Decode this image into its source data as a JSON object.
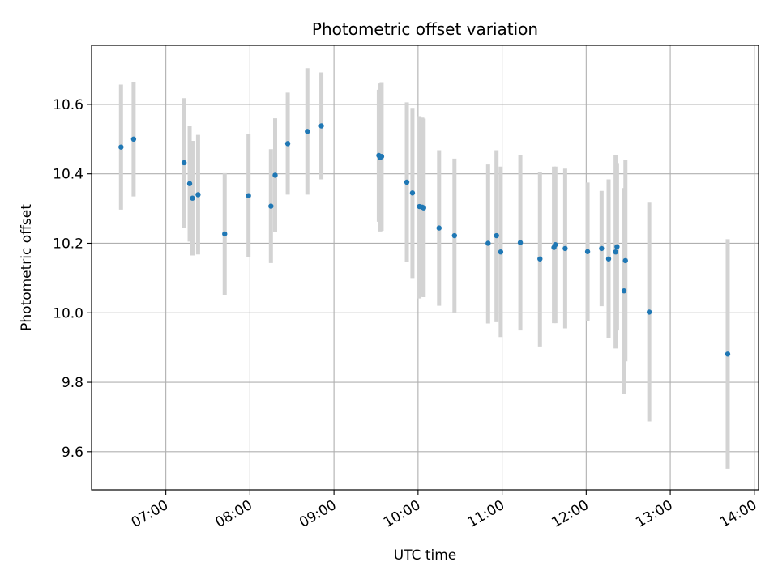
{
  "chart_data": {
    "type": "scatter",
    "title": "Photometric offset variation",
    "xlabel": "UTC time",
    "ylabel": "Photometric offset",
    "x_tick_labels": [
      "07:00",
      "08:00",
      "09:00",
      "10:00",
      "11:00",
      "12:00",
      "13:00",
      "14:00"
    ],
    "y_tick_labels": [
      "9.6",
      "9.8",
      "10.0",
      "10.2",
      "10.4",
      "10.6"
    ],
    "xlim": [
      "06:07",
      "14:03"
    ],
    "ylim": [
      9.49,
      10.77
    ],
    "grid": true,
    "colors": {
      "point": "#1f77b4",
      "errorbar": "#d3d3d3",
      "grid": "#b0b0b0"
    },
    "points": [
      {
        "x": "06:28",
        "y": 10.477,
        "lo": 10.297,
        "hi": 10.657
      },
      {
        "x": "06:37",
        "y": 10.5,
        "lo": 10.335,
        "hi": 10.665
      },
      {
        "x": "07:13",
        "y": 10.432,
        "lo": 10.245,
        "hi": 10.618
      },
      {
        "x": "07:17",
        "y": 10.372,
        "lo": 10.205,
        "hi": 10.539
      },
      {
        "x": "07:19",
        "y": 10.33,
        "lo": 10.165,
        "hi": 10.495
      },
      {
        "x": "07:23",
        "y": 10.34,
        "lo": 10.168,
        "hi": 10.512
      },
      {
        "x": "07:42",
        "y": 10.227,
        "lo": 10.052,
        "hi": 10.402
      },
      {
        "x": "07:59",
        "y": 10.337,
        "lo": 10.159,
        "hi": 10.515
      },
      {
        "x": "08:15",
        "y": 10.307,
        "lo": 10.143,
        "hi": 10.471
      },
      {
        "x": "08:18",
        "y": 10.396,
        "lo": 10.232,
        "hi": 10.56
      },
      {
        "x": "08:27",
        "y": 10.487,
        "lo": 10.34,
        "hi": 10.634
      },
      {
        "x": "08:41",
        "y": 10.522,
        "lo": 10.34,
        "hi": 10.704
      },
      {
        "x": "08:51",
        "y": 10.538,
        "lo": 10.384,
        "hi": 10.692
      },
      {
        "x": "09:32",
        "y": 10.453,
        "lo": 10.262,
        "hi": 10.642
      },
      {
        "x": "09:33",
        "y": 10.447,
        "lo": 10.234,
        "hi": 10.66
      },
      {
        "x": "09:34",
        "y": 10.45,
        "lo": 10.236,
        "hi": 10.664
      },
      {
        "x": "09:52",
        "y": 10.376,
        "lo": 10.146,
        "hi": 10.606
      },
      {
        "x": "09:56",
        "y": 10.345,
        "lo": 10.1,
        "hi": 10.59
      },
      {
        "x": "10:01",
        "y": 10.306,
        "lo": 10.041,
        "hi": 10.566
      },
      {
        "x": "10:03",
        "y": 10.304,
        "lo": 10.046,
        "hi": 10.562
      },
      {
        "x": "10:04",
        "y": 10.302,
        "lo": 10.045,
        "hi": 10.559
      },
      {
        "x": "10:15",
        "y": 10.244,
        "lo": 10.02,
        "hi": 10.468
      },
      {
        "x": "10:26",
        "y": 10.222,
        "lo": 10.0,
        "hi": 10.444
      },
      {
        "x": "10:50",
        "y": 10.2,
        "lo": 9.969,
        "hi": 10.427
      },
      {
        "x": "10:56",
        "y": 10.222,
        "lo": 9.973,
        "hi": 10.468
      },
      {
        "x": "10:59",
        "y": 10.175,
        "lo": 9.93,
        "hi": 10.421
      },
      {
        "x": "11:13",
        "y": 10.202,
        "lo": 9.949,
        "hi": 10.455
      },
      {
        "x": "11:27",
        "y": 10.155,
        "lo": 9.903,
        "hi": 10.405
      },
      {
        "x": "11:37",
        "y": 10.188,
        "lo": 9.97,
        "hi": 10.421
      },
      {
        "x": "11:38",
        "y": 10.196,
        "lo": 9.97,
        "hi": 10.421
      },
      {
        "x": "11:45",
        "y": 10.185,
        "lo": 9.955,
        "hi": 10.415
      },
      {
        "x": "12:01",
        "y": 10.176,
        "lo": 9.977,
        "hi": 10.375
      },
      {
        "x": "12:11",
        "y": 10.185,
        "lo": 10.019,
        "hi": 10.351
      },
      {
        "x": "12:16",
        "y": 10.155,
        "lo": 9.926,
        "hi": 10.384
      },
      {
        "x": "12:21",
        "y": 10.175,
        "lo": 9.897,
        "hi": 10.454
      },
      {
        "x": "12:22",
        "y": 10.19,
        "lo": 9.949,
        "hi": 10.431
      },
      {
        "x": "12:27",
        "y": 10.063,
        "lo": 9.767,
        "hi": 10.359
      },
      {
        "x": "12:28",
        "y": 10.15,
        "lo": 9.86,
        "hi": 10.44
      },
      {
        "x": "12:45",
        "y": 10.002,
        "lo": 9.687,
        "hi": 10.317
      },
      {
        "x": "13:41",
        "y": 9.881,
        "lo": 9.551,
        "hi": 10.212
      }
    ]
  }
}
